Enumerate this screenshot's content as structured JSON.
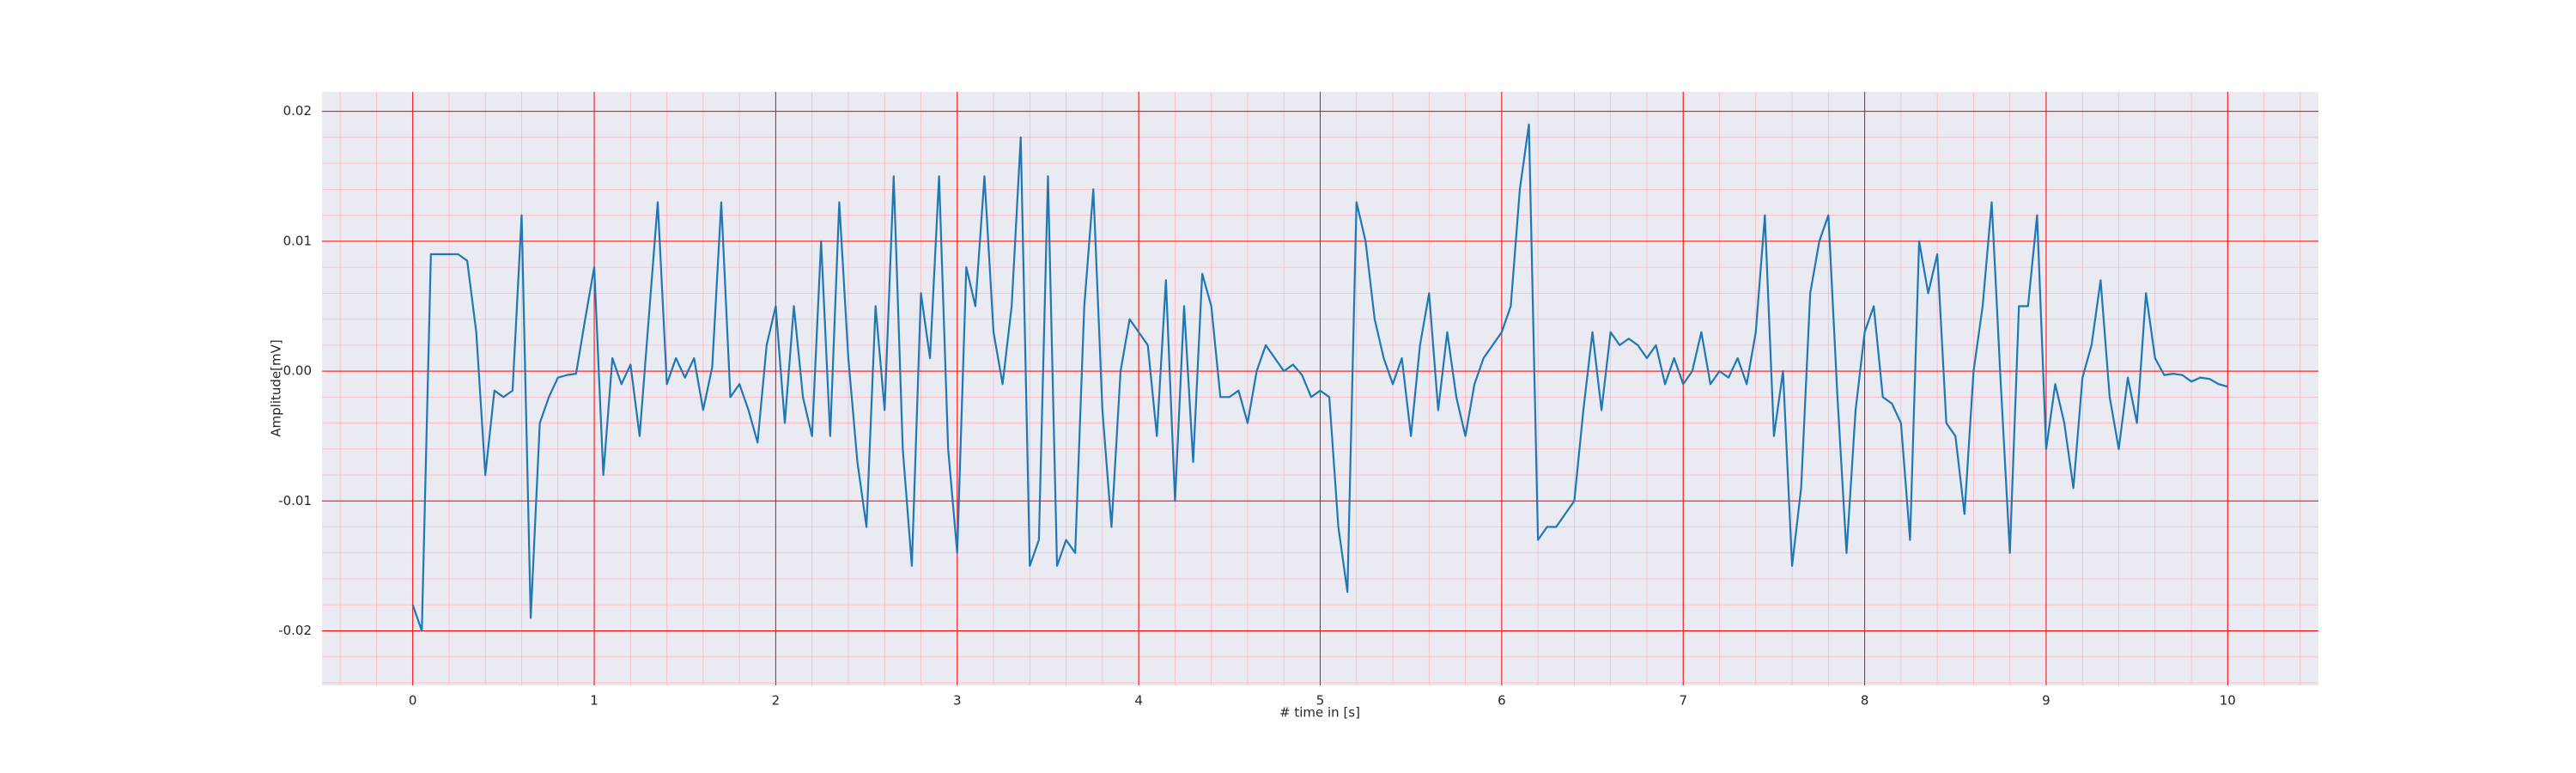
{
  "chart_data": {
    "type": "line",
    "xlabel": "# time in [s]",
    "ylabel": "Amplitude[mV]",
    "x": [
      0,
      0.05,
      0.1,
      0.15,
      0.2,
      0.25,
      0.3,
      0.35,
      0.4,
      0.45,
      0.5,
      0.55,
      0.6,
      0.65,
      0.7,
      0.75,
      0.8,
      0.85,
      0.9,
      0.95,
      1,
      1.05,
      1.1,
      1.15,
      1.2,
      1.25,
      1.3,
      1.35,
      1.4,
      1.45,
      1.5,
      1.55,
      1.6,
      1.65,
      1.7,
      1.75,
      1.8,
      1.85,
      1.9,
      1.95,
      2,
      2.05,
      2.1,
      2.15,
      2.2,
      2.25,
      2.3,
      2.35,
      2.4,
      2.45,
      2.5,
      2.55,
      2.6,
      2.65,
      2.7,
      2.75,
      2.8,
      2.85,
      2.9,
      2.95,
      3,
      3.05,
      3.1,
      3.15,
      3.2,
      3.25,
      3.3,
      3.35,
      3.4,
      3.45,
      3.5,
      3.55,
      3.6,
      3.65,
      3.7,
      3.75,
      3.8,
      3.85,
      3.9,
      3.95,
      4,
      4.05,
      4.1,
      4.15,
      4.2,
      4.25,
      4.3,
      4.35,
      4.4,
      4.45,
      4.5,
      4.55,
      4.6,
      4.65,
      4.7,
      4.75,
      4.8,
      4.85,
      4.9,
      4.95,
      5,
      5.05,
      5.1,
      5.15,
      5.2,
      5.25,
      5.3,
      5.35,
      5.4,
      5.45,
      5.5,
      5.55,
      5.6,
      5.65,
      5.7,
      5.75,
      5.8,
      5.85,
      5.9,
      5.95,
      6,
      6.05,
      6.1,
      6.15,
      6.2,
      6.25,
      6.3,
      6.35,
      6.4,
      6.45,
      6.5,
      6.55,
      6.6,
      6.65,
      6.7,
      6.75,
      6.8,
      6.85,
      6.9,
      6.95,
      7,
      7.05,
      7.1,
      7.15,
      7.2,
      7.25,
      7.3,
      7.35,
      7.4,
      7.45,
      7.5,
      7.55,
      7.6,
      7.65,
      7.7,
      7.75,
      7.8,
      7.85,
      7.9,
      7.95,
      8,
      8.05,
      8.1,
      8.15,
      8.2,
      8.25,
      8.3,
      8.35,
      8.4,
      8.45,
      8.5,
      8.55,
      8.6,
      8.65,
      8.7,
      8.75,
      8.8,
      8.85,
      8.9,
      8.95,
      9,
      9.05,
      9.1,
      9.15,
      9.2,
      9.25,
      9.3,
      9.35,
      9.4,
      9.45,
      9.5,
      9.55,
      9.6,
      9.65,
      9.7,
      9.75,
      9.8,
      9.85,
      9.9,
      9.95,
      10
    ],
    "series": [
      {
        "color": "#1f77b4",
        "values": [
          -0.018,
          -0.02,
          0.009,
          0.009,
          0.009,
          0.009,
          0.0085,
          0.003,
          -0.008,
          -0.0015,
          -0.002,
          -0.0015,
          0.012,
          -0.019,
          -0.004,
          -0.002,
          -0.0005,
          -0.0003,
          -0.0002,
          0.004,
          0.008,
          -0.008,
          0.001,
          -0.001,
          0.0005,
          -0.005,
          0.004,
          0.013,
          -0.001,
          0.001,
          -0.0005,
          0.001,
          -0.003,
          0.0003,
          0.013,
          -0.002,
          -0.001,
          -0.003,
          -0.0055,
          0.002,
          0.005,
          -0.004,
          0.005,
          -0.002,
          -0.005,
          0.01,
          -0.005,
          0.013,
          0.001,
          -0.007,
          -0.012,
          0.005,
          -0.003,
          0.015,
          -0.006,
          -0.015,
          0.006,
          0.001,
          0.015,
          -0.006,
          -0.014,
          0.008,
          0.005,
          0.015,
          0.003,
          -0.001,
          0.005,
          0.018,
          -0.015,
          -0.013,
          0.015,
          -0.015,
          -0.013,
          -0.014,
          0.005,
          0.014,
          -0.003,
          -0.012,
          0.0,
          0.004,
          0.003,
          0.002,
          -0.005,
          0.007,
          -0.01,
          0.005,
          -0.007,
          0.0075,
          0.005,
          -0.002,
          -0.002,
          -0.0015,
          -0.004,
          0.0,
          0.002,
          0.001,
          0.0,
          0.0005,
          -0.0003,
          -0.002,
          -0.0015,
          -0.002,
          -0.012,
          -0.017,
          0.013,
          0.01,
          0.004,
          0.001,
          -0.001,
          0.001,
          -0.005,
          0.002,
          0.006,
          -0.003,
          0.003,
          -0.002,
          -0.005,
          -0.001,
          0.001,
          0.002,
          0.003,
          0.005,
          0.014,
          0.019,
          -0.013,
          -0.012,
          -0.012,
          -0.011,
          -0.01,
          -0.003,
          0.003,
          -0.003,
          0.003,
          0.002,
          0.0025,
          0.002,
          0.001,
          0.002,
          -0.001,
          0.001,
          -0.001,
          0.0,
          0.003,
          -0.001,
          0.0,
          -0.0005,
          0.001,
          -0.001,
          0.003,
          0.012,
          -0.005,
          0.0,
          -0.015,
          -0.009,
          0.006,
          0.01,
          0.012,
          -0.002,
          -0.014,
          -0.003,
          0.003,
          0.005,
          -0.002,
          -0.0025,
          -0.004,
          -0.013,
          0.01,
          0.006,
          0.009,
          -0.004,
          -0.005,
          -0.011,
          0.0,
          0.005,
          0.013,
          -0.001,
          -0.014,
          0.005,
          0.005,
          0.012,
          -0.006,
          -0.001,
          -0.004,
          -0.009,
          -0.0005,
          0.002,
          0.007,
          -0.002,
          -0.006,
          -0.0005,
          -0.004,
          0.006,
          0.001,
          -0.0003,
          -0.0002,
          -0.0003,
          -0.0008,
          -0.0005,
          -0.0006,
          -0.001,
          -0.0012
        ]
      }
    ],
    "xlim": [
      -0.5,
      10.5
    ],
    "ylim": [
      -0.0242,
      0.0215
    ],
    "xticks": [
      0,
      1,
      2,
      3,
      4,
      5,
      6,
      7,
      8,
      9,
      10
    ],
    "yticks": [
      -0.02,
      -0.01,
      {
        "value": 0,
        "label": "0.00"
      },
      0.01,
      0.02
    ],
    "grid": true,
    "minor_grid": true,
    "grid_color": "#ff0000",
    "minor_grid_color": "#ffb6c1",
    "background": "#eaeaf2"
  }
}
